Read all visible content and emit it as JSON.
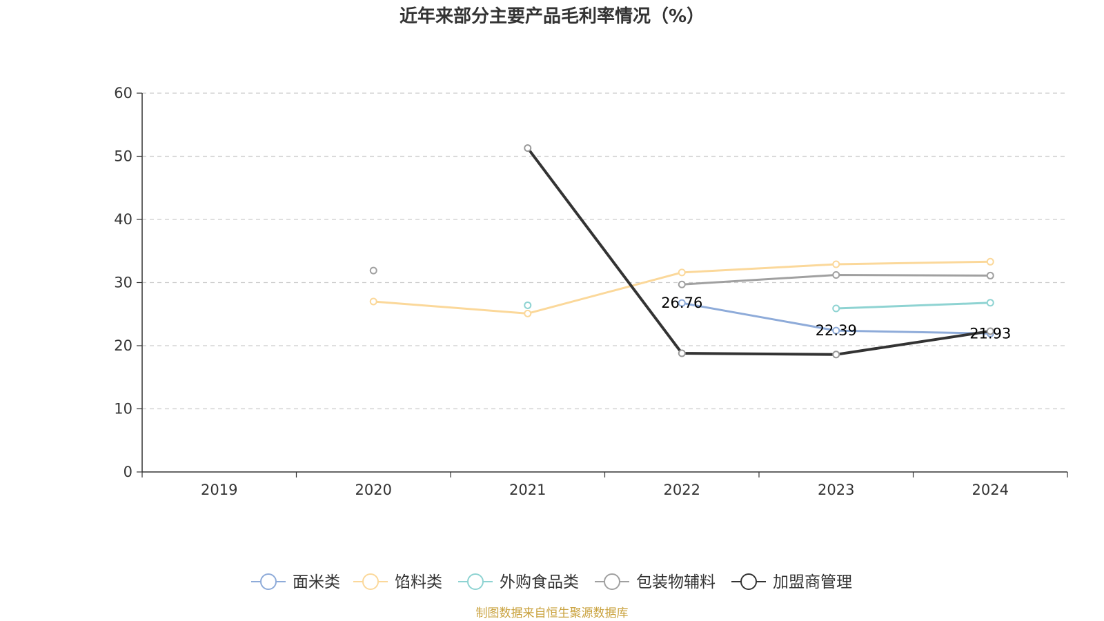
{
  "chart_data": {
    "type": "line",
    "title": "近年来部分主要产品毛利率情况（%）",
    "xlabel": "",
    "ylabel": "",
    "categories": [
      "2019",
      "2020",
      "2021",
      "2022",
      "2023",
      "2024"
    ],
    "ylim": [
      0,
      60
    ],
    "yticks": [
      0,
      10,
      20,
      30,
      40,
      50,
      60
    ],
    "grid": true,
    "legend_position": "bottom",
    "series": [
      {
        "name": "面米类",
        "color": "#8eabd9",
        "values": [
          null,
          null,
          null,
          26.76,
          22.39,
          21.93
        ],
        "labels": [
          null,
          null,
          null,
          "26.76",
          "22.39",
          "21.93"
        ]
      },
      {
        "name": "馅料类",
        "color": "#fbd89a",
        "values": [
          null,
          27.0,
          25.1,
          31.6,
          32.9,
          33.3
        ]
      },
      {
        "name": "外购食品类",
        "color": "#8ed3d2",
        "values": [
          null,
          null,
          26.4,
          null,
          25.9,
          26.8
        ]
      },
      {
        "name": "包装物辅料",
        "color": "#a0a0a0",
        "values": [
          null,
          31.9,
          null,
          29.7,
          31.2,
          31.1
        ]
      },
      {
        "name": "加盟商管理",
        "color": "#333333",
        "marker_color": "#999999",
        "values": [
          null,
          null,
          51.3,
          18.8,
          18.6,
          22.3
        ]
      }
    ]
  },
  "source_note": "制图数据来自恒生聚源数据库"
}
